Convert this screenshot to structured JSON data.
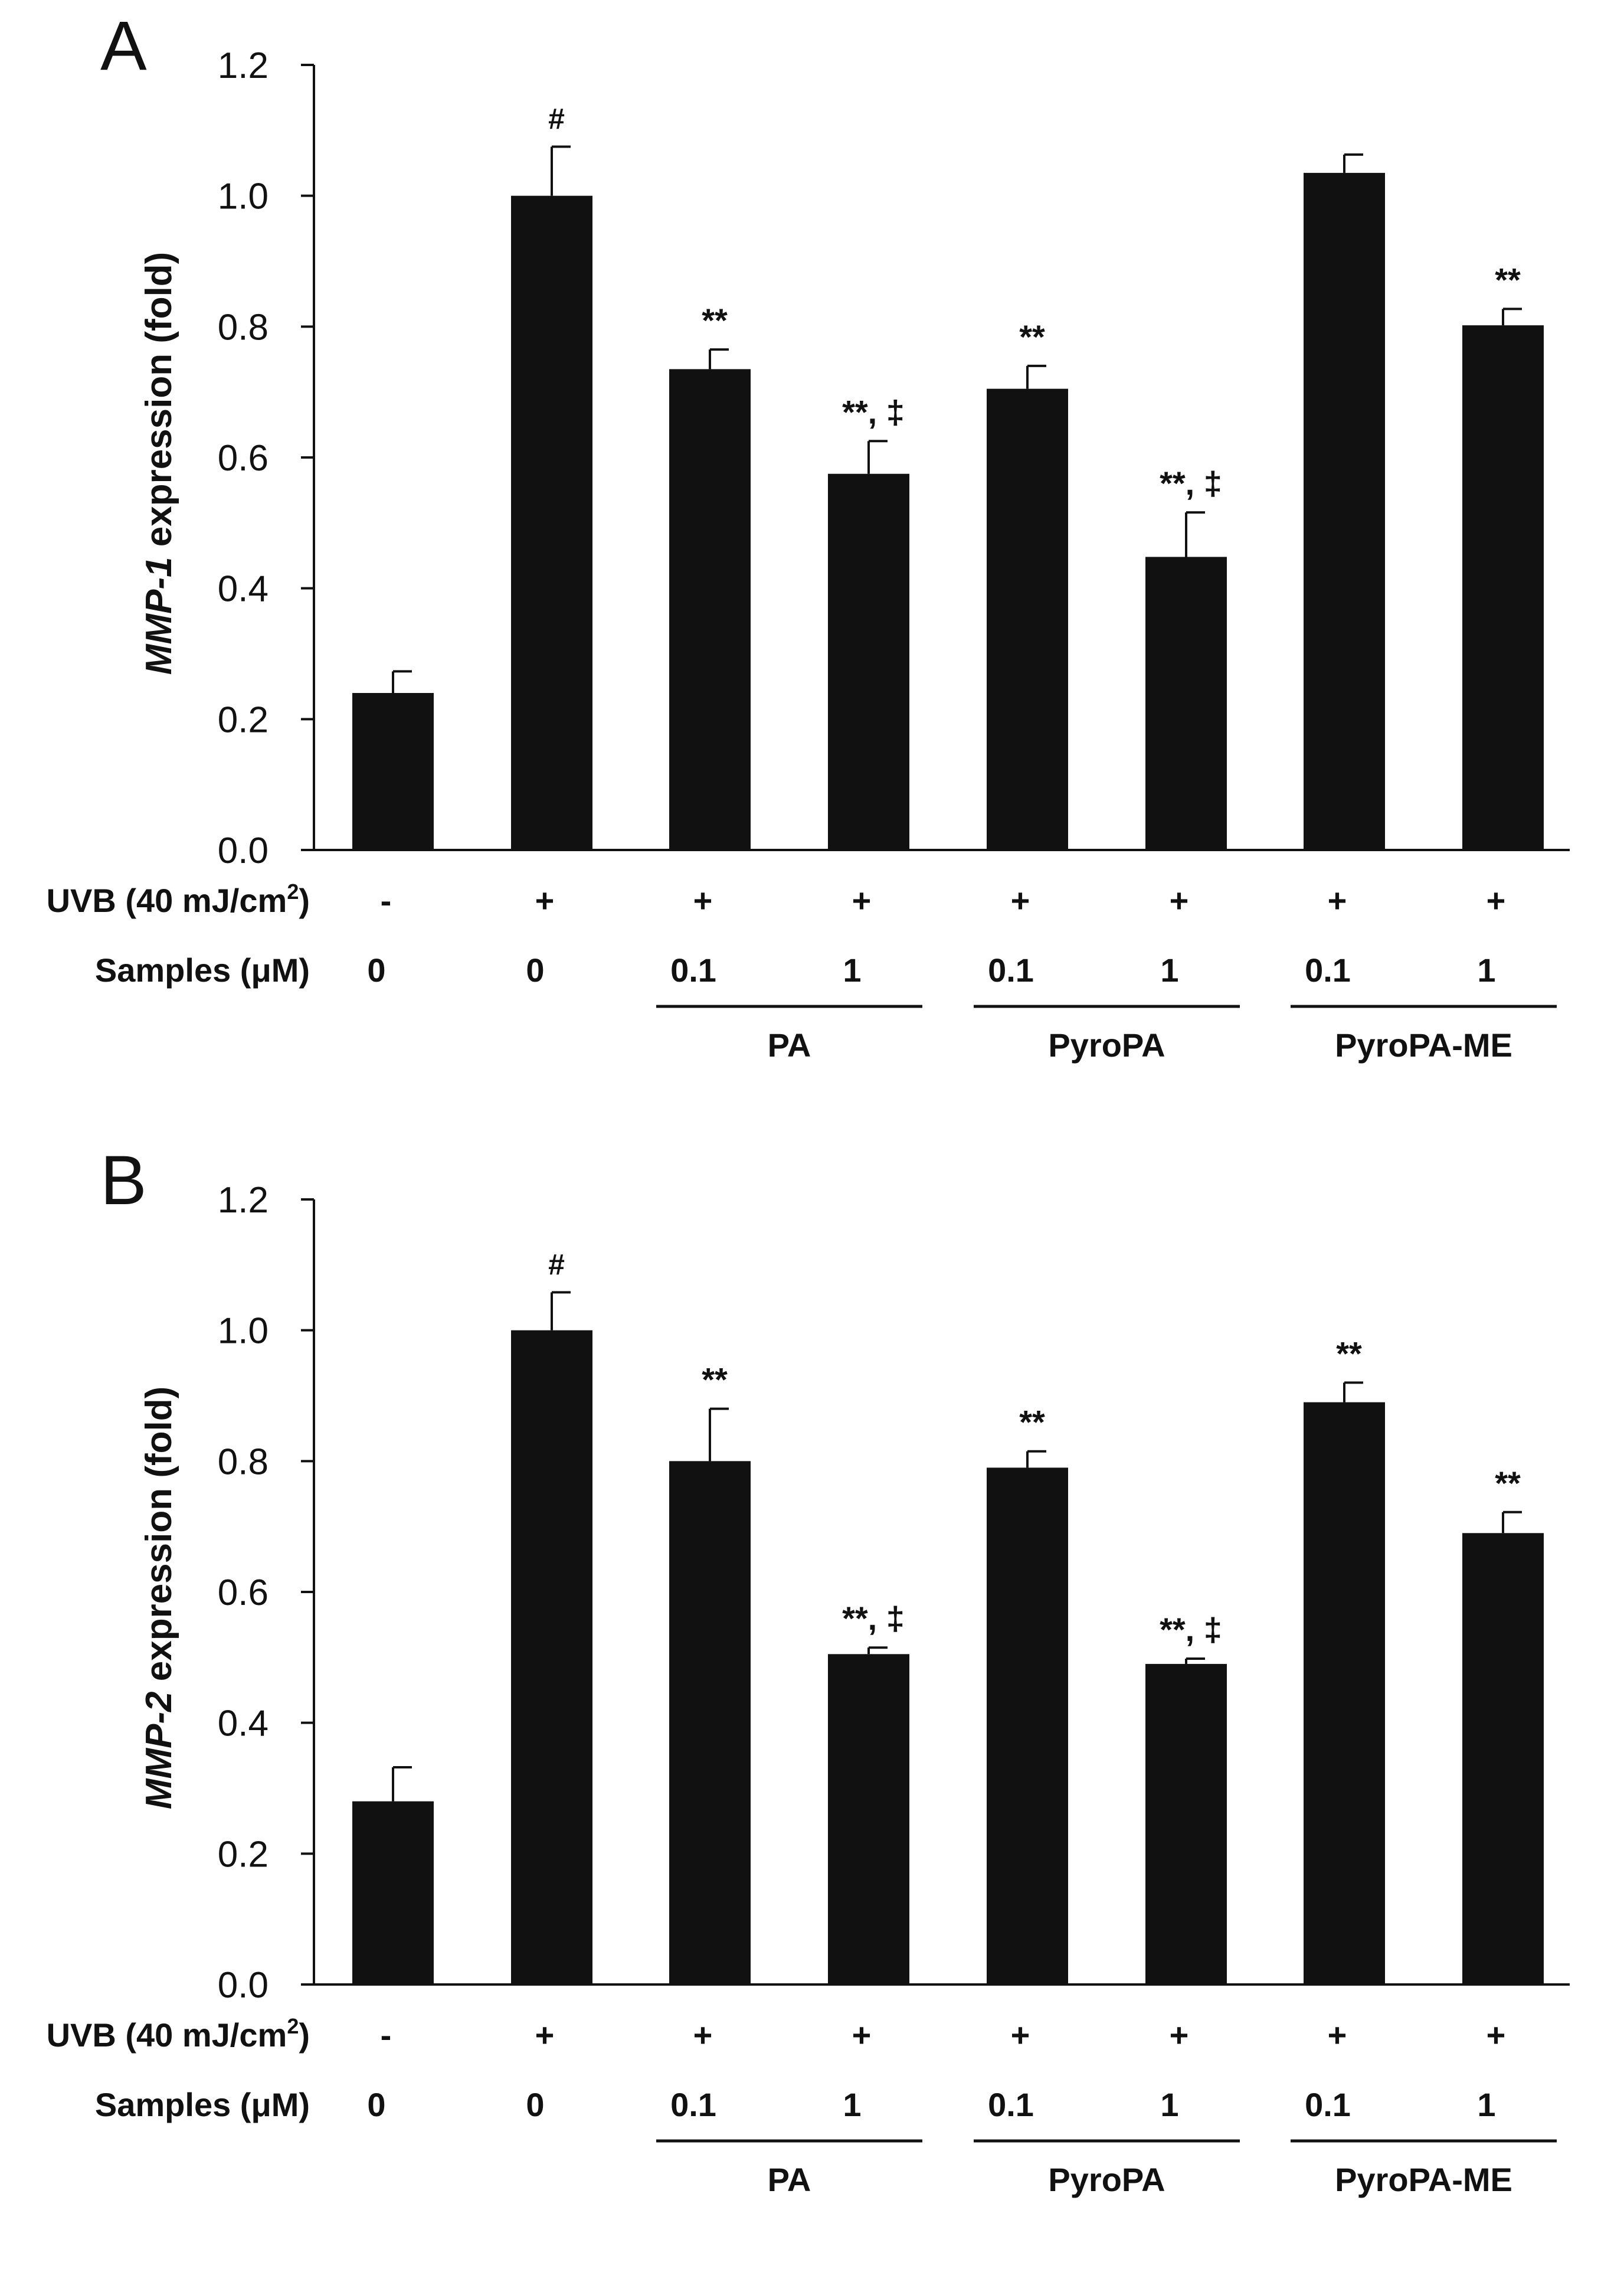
{
  "chart_data": [
    {
      "panel": "A",
      "type": "bar",
      "ylabel_italic": "MMP-1",
      "ylabel_rest": " expression (fold)",
      "ylim": [
        0,
        1.2
      ],
      "yticks": [
        "0.0",
        "0.2",
        "0.4",
        "0.6",
        "0.8",
        "1.0",
        "1.2"
      ],
      "values": [
        0.24,
        1.0,
        0.735,
        0.575,
        0.705,
        0.448,
        1.035,
        0.802
      ],
      "errors": [
        0.033,
        0.075,
        0.03,
        0.05,
        0.035,
        0.068,
        0.028,
        0.025
      ],
      "significance": [
        "",
        "#",
        "**",
        "**, ‡",
        "**",
        "**, ‡",
        "",
        "**"
      ],
      "uvb_label": "UVB (40 mJ/cm",
      "uvb_sup": "2",
      "uvb_close": ")",
      "uvb": [
        "-",
        "+",
        "+",
        "+",
        "+",
        "+",
        "+",
        "+"
      ],
      "samples_label": "Samples (μM)",
      "samples": [
        "0",
        "0",
        "0.1",
        "1",
        "0.1",
        "1",
        "0.1",
        "1"
      ],
      "groups": [
        {
          "label": "PA",
          "from": 2,
          "to": 3
        },
        {
          "label": "PyroPA",
          "from": 4,
          "to": 5
        },
        {
          "label": "PyroPA-ME",
          "from": 6,
          "to": 7
        }
      ]
    },
    {
      "panel": "B",
      "type": "bar",
      "ylabel_italic": "MMP-2",
      "ylabel_rest": " expression (fold)",
      "ylim": [
        0,
        1.2
      ],
      "yticks": [
        "0.0",
        "0.2",
        "0.4",
        "0.6",
        "0.8",
        "1.0",
        "1.2"
      ],
      "values": [
        0.28,
        1.0,
        0.8,
        0.505,
        0.79,
        0.49,
        0.89,
        0.69
      ],
      "errors": [
        0.052,
        0.058,
        0.08,
        0.01,
        0.025,
        0.008,
        0.03,
        0.032
      ],
      "significance": [
        "",
        "#",
        "**",
        "**, ‡",
        "**",
        "**, ‡",
        "**",
        "**"
      ],
      "uvb_label": "UVB (40 mJ/cm",
      "uvb_sup": "2",
      "uvb_close": ")",
      "uvb": [
        "-",
        "+",
        "+",
        "+",
        "+",
        "+",
        "+",
        "+"
      ],
      "samples_label": "Samples (μM)",
      "samples": [
        "0",
        "0",
        "0.1",
        "1",
        "0.1",
        "1",
        "0.1",
        "1"
      ],
      "groups": [
        {
          "label": "PA",
          "from": 2,
          "to": 3
        },
        {
          "label": "PyroPA",
          "from": 4,
          "to": 5
        },
        {
          "label": "PyroPA-ME",
          "from": 6,
          "to": 7
        }
      ]
    }
  ]
}
